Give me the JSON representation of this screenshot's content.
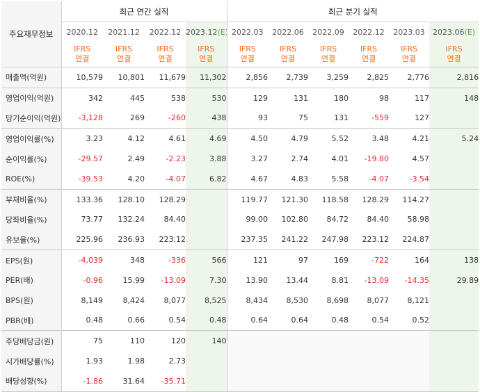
{
  "header": {
    "corner_label": "주요재무정보",
    "annual_group": "최근 연간 실적",
    "quarter_group": "최근 분기 실적",
    "annual_periods": [
      "2020.12",
      "2021.12",
      "2022.12",
      "2023.12"
    ],
    "annual_est_suffix": "(E)",
    "quarter_periods": [
      "2022.03",
      "2022.06",
      "2022.09",
      "2022.12",
      "2023.03",
      "2023.06"
    ],
    "quarter_est_suffix": "(E)",
    "ifrs_line1": "IFRS",
    "ifrs_line2": "연결"
  },
  "estimate_columns": [
    3,
    9
  ],
  "rows": [
    {
      "label": "매출액(억원)",
      "values": [
        "10,579",
        "10,801",
        "11,679",
        "11,302",
        "2,856",
        "2,739",
        "3,259",
        "2,825",
        "2,776",
        "2,816"
      ],
      "group_start": false
    },
    {
      "label": "영업이익(억원)",
      "values": [
        "342",
        "445",
        "538",
        "530",
        "129",
        "131",
        "180",
        "98",
        "117",
        "148"
      ],
      "group_start": true
    },
    {
      "label": "당기순이익(억원)",
      "values": [
        "-3,128",
        "269",
        "-260",
        "438",
        "93",
        "75",
        "131",
        "-559",
        "127",
        ""
      ],
      "group_start": true
    },
    {
      "label": "영업이익률(%)",
      "values": [
        "3.23",
        "4.12",
        "4.61",
        "4.69",
        "4.50",
        "4.79",
        "5.52",
        "3.48",
        "4.21",
        "5.24"
      ],
      "group_start": true
    },
    {
      "label": "순이익률(%)",
      "values": [
        "-29.57",
        "2.49",
        "-2.23",
        "3.88",
        "3.27",
        "2.74",
        "4.01",
        "-19.80",
        "4.57",
        ""
      ],
      "group_start": true
    },
    {
      "label": "ROE(%)",
      "values": [
        "-39.53",
        "4.20",
        "-4.07",
        "6.82",
        "4.67",
        "4.83",
        "5.58",
        "-4.07",
        "-3.54",
        ""
      ],
      "group_start": true
    },
    {
      "label": "부채비율(%)",
      "values": [
        "133.36",
        "128.10",
        "128.29",
        "",
        "119.77",
        "121.30",
        "118.58",
        "128.29",
        "114.27",
        ""
      ],
      "group_start": true
    },
    {
      "label": "당좌비율(%)",
      "values": [
        "73.77",
        "132.24",
        "84.40",
        "",
        "99.00",
        "102.80",
        "84.72",
        "84.40",
        "58.98",
        ""
      ],
      "group_start": true
    },
    {
      "label": "유보율(%)",
      "values": [
        "225.96",
        "236.93",
        "223.12",
        "",
        "237.35",
        "241.22",
        "247.98",
        "223.12",
        "224.87",
        ""
      ],
      "group_start": true
    },
    {
      "label": "EPS(원)",
      "values": [
        "-4,039",
        "348",
        "-336",
        "566",
        "121",
        "97",
        "169",
        "-722",
        "164",
        "138"
      ],
      "group_start": true
    },
    {
      "label": "PER(배)",
      "values": [
        "-0.96",
        "15.99",
        "-13.09",
        "7.30",
        "13.90",
        "13.44",
        "8.81",
        "-13.09",
        "-14.35",
        "29.89"
      ],
      "group_start": true
    },
    {
      "label": "BPS(원)",
      "values": [
        "8,149",
        "8,424",
        "8,077",
        "8,525",
        "8,434",
        "8,530",
        "8,698",
        "8,077",
        "8,121",
        ""
      ],
      "group_start": true
    },
    {
      "label": "PBR(배)",
      "values": [
        "0.48",
        "0.66",
        "0.54",
        "0.48",
        "0.64",
        "0.64",
        "0.48",
        "0.54",
        "0.52",
        ""
      ],
      "group_start": true
    },
    {
      "label": "주당배당금(원)",
      "values": [
        "75",
        "110",
        "120",
        "140",
        "",
        "",
        "",
        "",
        "",
        ""
      ],
      "group_start": true
    },
    {
      "label": "시가배당률(%)",
      "values": [
        "1.93",
        "1.98",
        "2.73",
        "",
        "",
        "",
        "",
        "",
        "",
        ""
      ],
      "group_start": true
    },
    {
      "label": "배당성향(%)",
      "values": [
        "-1.86",
        "31.64",
        "-35.71",
        "",
        "",
        "",
        "",
        "",
        "",
        ""
      ],
      "group_start": true
    }
  ]
}
